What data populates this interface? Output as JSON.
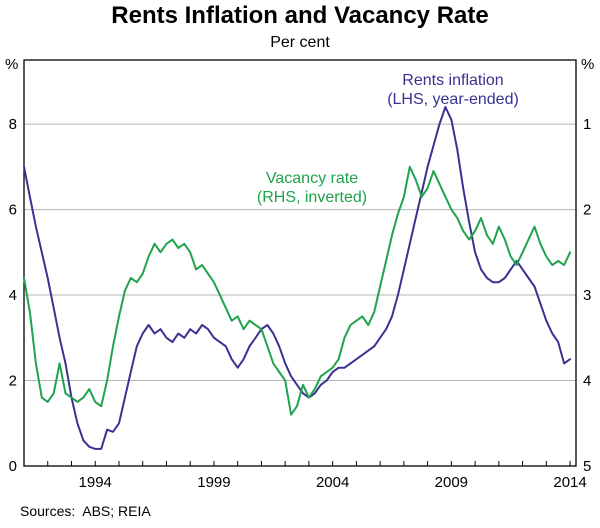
{
  "chart_data": {
    "type": "line",
    "title": "Rents Inflation and Vacancy Rate",
    "subtitle": "Per cent",
    "x_range": [
      1991,
      2014.25
    ],
    "x_ticks": [
      1994,
      1999,
      2004,
      2009,
      2014
    ],
    "grid": "horizontal",
    "left_axis": {
      "unit": "%",
      "ticks": [
        0,
        2,
        4,
        6,
        8
      ],
      "range": [
        0,
        9.5
      ]
    },
    "right_axis": {
      "unit": "%",
      "ticks": [
        1,
        2,
        3,
        4,
        5
      ],
      "inverted": true,
      "left_equiv_intercept": 10,
      "left_equiv_slope": -2
    },
    "series": [
      {
        "name": "Rents inflation",
        "axis": "LHS",
        "color": "#3A3293",
        "label_line1": "Rents inflation",
        "label_line2": "(LHS, year-ended)",
        "x_start": 1991,
        "x_step": 0.25,
        "values": [
          7.0,
          6.3,
          5.6,
          5.0,
          4.4,
          3.7,
          3.0,
          2.4,
          1.6,
          1.0,
          0.6,
          0.45,
          0.4,
          0.4,
          0.85,
          0.8,
          1.0,
          1.6,
          2.2,
          2.8,
          3.1,
          3.3,
          3.1,
          3.2,
          3.0,
          2.9,
          3.1,
          3.0,
          3.2,
          3.1,
          3.3,
          3.2,
          3.0,
          2.9,
          2.8,
          2.5,
          2.3,
          2.5,
          2.8,
          3.0,
          3.2,
          3.3,
          3.1,
          2.8,
          2.4,
          2.1,
          1.9,
          1.7,
          1.6,
          1.7,
          1.9,
          2.0,
          2.2,
          2.3,
          2.3,
          2.4,
          2.5,
          2.6,
          2.7,
          2.8,
          3.0,
          3.2,
          3.5,
          4.0,
          4.6,
          5.2,
          5.8,
          6.4,
          7.0,
          7.5,
          8.0,
          8.4,
          8.1,
          7.4,
          6.5,
          5.7,
          5.0,
          4.6,
          4.4,
          4.3,
          4.3,
          4.4,
          4.6,
          4.8,
          4.6,
          4.4,
          4.2,
          3.8,
          3.4,
          3.1,
          2.9,
          2.4,
          2.5
        ]
      },
      {
        "name": "Vacancy rate",
        "axis": "RHS",
        "color": "#1FA34C",
        "label_line1": "Vacancy rate",
        "label_line2": "(RHS, inverted)",
        "x_start": 1991,
        "x_step": 0.25,
        "values": [
          2.8,
          3.2,
          3.8,
          4.2,
          4.25,
          4.15,
          3.8,
          4.15,
          4.2,
          4.25,
          4.2,
          4.1,
          4.25,
          4.3,
          4.0,
          3.6,
          3.25,
          2.95,
          2.8,
          2.85,
          2.75,
          2.55,
          2.4,
          2.5,
          2.4,
          2.35,
          2.45,
          2.4,
          2.5,
          2.7,
          2.65,
          2.75,
          2.85,
          3.0,
          3.15,
          3.3,
          3.25,
          3.4,
          3.3,
          3.35,
          3.4,
          3.6,
          3.8,
          3.9,
          4.0,
          4.4,
          4.3,
          4.05,
          4.2,
          4.1,
          3.95,
          3.9,
          3.85,
          3.75,
          3.5,
          3.35,
          3.3,
          3.25,
          3.35,
          3.2,
          2.9,
          2.6,
          2.3,
          2.05,
          1.85,
          1.5,
          1.65,
          1.85,
          1.75,
          1.55,
          1.7,
          1.85,
          2.0,
          2.1,
          2.25,
          2.35,
          2.25,
          2.1,
          2.3,
          2.4,
          2.2,
          2.35,
          2.55,
          2.65,
          2.5,
          2.35,
          2.2,
          2.4,
          2.55,
          2.65,
          2.6,
          2.65,
          2.5
        ]
      }
    ],
    "sources": "Sources:  ABS; REIA"
  }
}
